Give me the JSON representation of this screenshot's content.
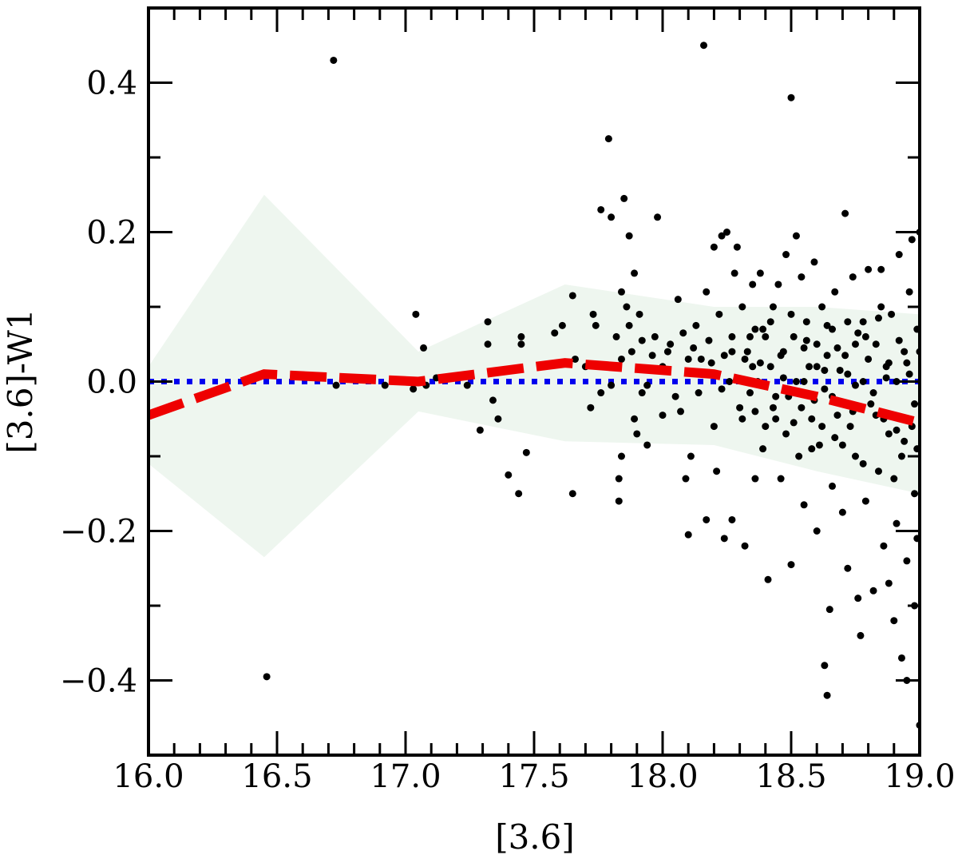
{
  "chart_data": {
    "type": "scatter",
    "title": "",
    "xlabel": "[3.6]",
    "ylabel": "[3.6]-W1",
    "xlim": [
      16.0,
      19.0
    ],
    "ylim": [
      -0.5,
      0.5
    ],
    "x_ticks": [
      16.0,
      16.5,
      17.0,
      17.5,
      18.0,
      18.5,
      19.0
    ],
    "x_tick_labels": [
      "16.0",
      "16.5",
      "17.0",
      "17.5",
      "18.0",
      "18.5",
      "19.0"
    ],
    "y_ticks": [
      -0.4,
      -0.2,
      0.0,
      0.2,
      0.4
    ],
    "y_tick_labels": [
      "−0.4",
      "−0.2",
      "0.0",
      "0.2",
      "0.4"
    ],
    "grid": false,
    "reference_line": {
      "y": 0.0,
      "style": "dotted",
      "color": "#0000ee"
    },
    "median_line": {
      "style": "dashed",
      "color": "#ee0000",
      "x": [
        16.0,
        16.45,
        17.05,
        17.62,
        18.2,
        18.6,
        19.0
      ],
      "y": [
        -0.045,
        0.01,
        0.0,
        0.025,
        0.01,
        -0.02,
        -0.055
      ]
    },
    "scatter_band": {
      "color": "#eef6ef",
      "x": [
        16.0,
        16.45,
        17.05,
        17.62,
        18.2,
        18.6,
        19.0
      ],
      "upper": [
        0.02,
        0.25,
        0.04,
        0.13,
        0.1,
        0.1,
        0.09
      ],
      "lower": [
        -0.11,
        -0.235,
        -0.04,
        -0.08,
        -0.085,
        -0.12,
        -0.15
      ]
    },
    "points_color": "#000000",
    "points": [
      [
        16.72,
        0.43
      ],
      [
        16.46,
        -0.395
      ],
      [
        16.73,
        -0.005
      ],
      [
        16.92,
        -0.005
      ],
      [
        17.04,
        0.09
      ],
      [
        17.07,
        0.045
      ],
      [
        17.03,
        -0.01
      ],
      [
        17.08,
        -0.005
      ],
      [
        17.12,
        0.005
      ],
      [
        17.24,
        -0.005
      ],
      [
        17.29,
        -0.065
      ],
      [
        17.32,
        0.08
      ],
      [
        17.32,
        0.05
      ],
      [
        17.34,
        -0.025
      ],
      [
        17.36,
        -0.05
      ],
      [
        17.4,
        -0.125
      ],
      [
        17.44,
        -0.15
      ],
      [
        17.45,
        0.06
      ],
      [
        17.45,
        0.05
      ],
      [
        17.47,
        -0.095
      ],
      [
        17.58,
        0.065
      ],
      [
        17.61,
        0.075
      ],
      [
        17.65,
        0.115
      ],
      [
        17.65,
        -0.15
      ],
      [
        17.66,
        0.03
      ],
      [
        17.7,
        0.02
      ],
      [
        17.73,
        0.09
      ],
      [
        17.74,
        0.075
      ],
      [
        17.72,
        -0.035
      ],
      [
        17.76,
        0.23
      ],
      [
        17.76,
        -0.015
      ],
      [
        17.8,
        -0.005
      ],
      [
        17.82,
        0.06
      ],
      [
        17.84,
        0.03
      ],
      [
        17.84,
        -0.1
      ],
      [
        17.79,
        0.325
      ],
      [
        17.8,
        0.22
      ],
      [
        17.84,
        0.12
      ],
      [
        17.86,
        0.1
      ],
      [
        17.87,
        0.075
      ],
      [
        17.88,
        0.04
      ],
      [
        17.85,
        0.245
      ],
      [
        17.87,
        0.195
      ],
      [
        17.89,
        0.145
      ],
      [
        17.89,
        -0.05
      ],
      [
        17.9,
        -0.07
      ],
      [
        17.91,
        0.09
      ],
      [
        17.92,
        0.055
      ],
      [
        17.92,
        -0.015
      ],
      [
        17.94,
        -0.005
      ],
      [
        17.94,
        -0.085
      ],
      [
        17.83,
        -0.13
      ],
      [
        17.83,
        -0.16
      ],
      [
        17.96,
        0.035
      ],
      [
        17.97,
        0.06
      ],
      [
        17.98,
        0.22
      ],
      [
        18.0,
        0.02
      ],
      [
        18.0,
        -0.045
      ],
      [
        18.02,
        0.04
      ],
      [
        18.03,
        0.05
      ],
      [
        18.05,
        -0.02
      ],
      [
        18.06,
        0.11
      ],
      [
        18.07,
        -0.04
      ],
      [
        18.08,
        0.065
      ],
      [
        18.09,
        -0.13
      ],
      [
        18.1,
        0.03
      ],
      [
        18.1,
        -0.205
      ],
      [
        18.11,
        -0.1
      ],
      [
        18.12,
        0.045
      ],
      [
        18.13,
        0.075
      ],
      [
        18.14,
        -0.015
      ],
      [
        18.15,
        0.03
      ],
      [
        18.16,
        0.45
      ],
      [
        18.17,
        -0.185
      ],
      [
        18.17,
        0.12
      ],
      [
        18.18,
        0.055
      ],
      [
        18.19,
        0.025
      ],
      [
        18.2,
        -0.06
      ],
      [
        18.2,
        0.18
      ],
      [
        18.21,
        -0.12
      ],
      [
        18.22,
        0.09
      ],
      [
        18.23,
        0.195
      ],
      [
        18.24,
        0.035
      ],
      [
        18.24,
        -0.21
      ],
      [
        18.25,
        0.2
      ],
      [
        18.26,
        0.0
      ],
      [
        18.27,
        0.06
      ],
      [
        18.27,
        -0.185
      ],
      [
        18.28,
        0.145
      ],
      [
        18.29,
        0.18
      ],
      [
        18.3,
        -0.035
      ],
      [
        18.31,
        0.1
      ],
      [
        18.32,
        -0.22
      ],
      [
        18.33,
        0.04
      ],
      [
        18.34,
        -0.015
      ],
      [
        18.35,
        0.13
      ],
      [
        18.36,
        0.07
      ],
      [
        18.36,
        -0.13
      ],
      [
        18.37,
        0.0
      ],
      [
        18.38,
        0.145
      ],
      [
        18.39,
        -0.09
      ],
      [
        18.4,
        0.06
      ],
      [
        18.41,
        -0.265
      ],
      [
        18.42,
        0.02
      ],
      [
        18.43,
        0.1
      ],
      [
        18.44,
        -0.05
      ],
      [
        18.45,
        0.13
      ],
      [
        18.46,
        -0.13
      ],
      [
        18.47,
        0.04
      ],
      [
        18.48,
        0.17
      ],
      [
        18.49,
        -0.02
      ],
      [
        18.5,
        0.38
      ],
      [
        18.5,
        -0.245
      ],
      [
        18.51,
        0.06
      ],
      [
        18.52,
        0.195
      ],
      [
        18.53,
        -0.1
      ],
      [
        18.54,
        0.14
      ],
      [
        18.55,
        0.0
      ],
      [
        18.55,
        -0.165
      ],
      [
        18.56,
        0.08
      ],
      [
        18.57,
        0.02
      ],
      [
        18.58,
        -0.05
      ],
      [
        18.59,
        0.16
      ],
      [
        18.6,
        -0.2
      ],
      [
        18.6,
        0.05
      ],
      [
        18.61,
        -0.085
      ],
      [
        18.62,
        0.1
      ],
      [
        18.63,
        -0.01
      ],
      [
        18.63,
        -0.38
      ],
      [
        18.64,
        0.035
      ],
      [
        18.64,
        -0.42
      ],
      [
        18.65,
        -0.305
      ],
      [
        18.66,
        -0.14
      ],
      [
        18.66,
        0.07
      ],
      [
        18.67,
        0.12
      ],
      [
        18.68,
        -0.045
      ],
      [
        18.69,
        0.015
      ],
      [
        18.7,
        -0.175
      ],
      [
        18.71,
        0.225
      ],
      [
        18.72,
        0.08
      ],
      [
        18.72,
        -0.25
      ],
      [
        18.73,
        -0.06
      ],
      [
        18.74,
        0.14
      ],
      [
        18.75,
        0.05
      ],
      [
        18.75,
        -0.1
      ],
      [
        18.76,
        -0.29
      ],
      [
        18.77,
        -0.34
      ],
      [
        18.78,
        0.0
      ],
      [
        18.78,
        0.08
      ],
      [
        18.79,
        -0.16
      ],
      [
        18.8,
        0.15
      ],
      [
        18.81,
        -0.03
      ],
      [
        18.82,
        -0.28
      ],
      [
        18.83,
        0.05
      ],
      [
        18.84,
        -0.12
      ],
      [
        18.85,
        0.1
      ],
      [
        18.85,
        0.15
      ],
      [
        18.86,
        -0.22
      ],
      [
        18.87,
        0.02
      ],
      [
        18.88,
        -0.07
      ],
      [
        18.88,
        -0.27
      ],
      [
        18.89,
        0.09
      ],
      [
        18.9,
        -0.32
      ],
      [
        18.91,
        0.0
      ],
      [
        18.91,
        -0.19
      ],
      [
        18.92,
        0.17
      ],
      [
        18.93,
        -0.1
      ],
      [
        18.93,
        -0.37
      ],
      [
        18.94,
        0.04
      ],
      [
        18.95,
        -0.24
      ],
      [
        18.95,
        -0.4
      ],
      [
        18.96,
        0.12
      ],
      [
        18.97,
        -0.06
      ],
      [
        18.97,
        0.19
      ],
      [
        18.98,
        -0.15
      ],
      [
        18.98,
        -0.3
      ],
      [
        18.99,
        0.07
      ],
      [
        18.99,
        -0.21
      ],
      [
        19.0,
        0.2
      ],
      [
        19.0,
        -0.46
      ],
      [
        18.32,
        0.03
      ],
      [
        18.34,
        0.06
      ],
      [
        18.36,
        -0.04
      ],
      [
        18.38,
        0.025
      ],
      [
        18.4,
        -0.06
      ],
      [
        18.42,
        0.08
      ],
      [
        18.44,
        -0.02
      ],
      [
        18.46,
        0.035
      ],
      [
        18.48,
        -0.07
      ],
      [
        18.5,
        0.09
      ],
      [
        18.52,
        0.0
      ],
      [
        18.54,
        -0.035
      ],
      [
        18.56,
        0.055
      ],
      [
        18.58,
        -0.09
      ],
      [
        18.6,
        0.02
      ],
      [
        18.62,
        -0.06
      ],
      [
        18.64,
        0.075
      ],
      [
        18.66,
        -0.02
      ],
      [
        18.68,
        0.045
      ],
      [
        18.7,
        -0.085
      ],
      [
        18.72,
        0.01
      ],
      [
        18.74,
        -0.04
      ],
      [
        18.76,
        0.065
      ],
      [
        18.78,
        -0.11
      ],
      [
        18.8,
        0.03
      ],
      [
        18.82,
        -0.015
      ],
      [
        18.84,
        0.085
      ],
      [
        18.86,
        -0.05
      ],
      [
        18.88,
        0.025
      ],
      [
        18.9,
        -0.13
      ],
      [
        18.92,
        0.055
      ],
      [
        18.94,
        -0.08
      ],
      [
        18.96,
        0.01
      ],
      [
        18.98,
        -0.03
      ],
      [
        19.0,
        0.04
      ],
      [
        18.23,
        -0.01
      ],
      [
        18.27,
        0.04
      ],
      [
        18.31,
        -0.05
      ],
      [
        18.35,
        0.02
      ],
      [
        18.39,
        0.07
      ],
      [
        18.43,
        -0.035
      ],
      [
        18.47,
        0.005
      ],
      [
        18.51,
        -0.055
      ],
      [
        18.55,
        0.045
      ],
      [
        18.59,
        -0.025
      ],
      [
        18.63,
        0.015
      ],
      [
        18.67,
        -0.075
      ],
      [
        18.71,
        0.035
      ],
      [
        18.75,
        -0.005
      ],
      [
        18.79,
        0.06
      ],
      [
        18.83,
        -0.045
      ],
      [
        18.87,
        0.005
      ],
      [
        18.91,
        -0.065
      ],
      [
        18.95,
        0.025
      ],
      [
        18.99,
        -0.09
      ]
    ]
  }
}
